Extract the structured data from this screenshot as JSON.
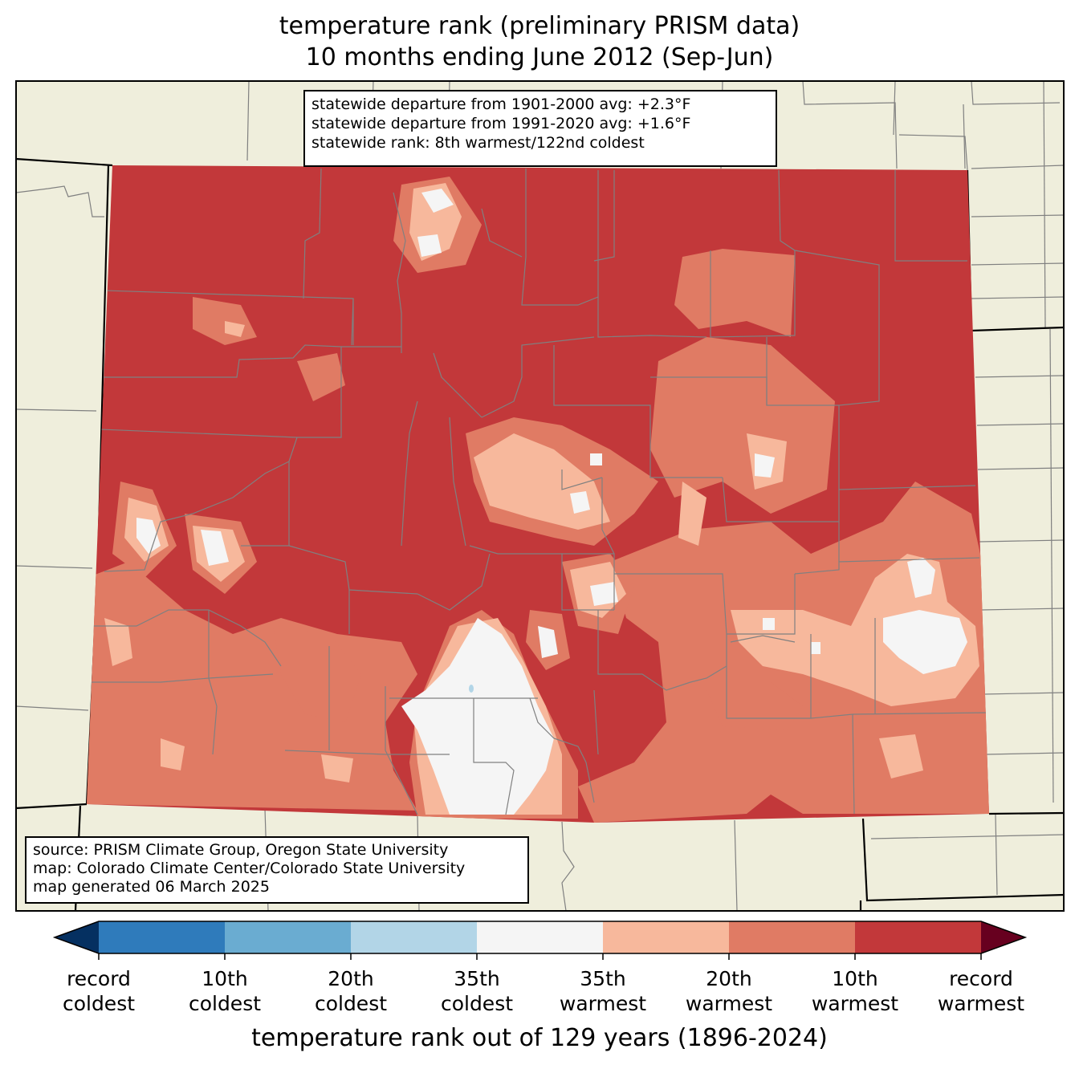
{
  "title_line1": "temperature rank (preliminary PRISM data)",
  "title_line2": "10 months ending June 2012 (Sep-Jun)",
  "stats": {
    "line1": "statewide departure from 1901-2000 avg: +2.3°F",
    "line2": "statewide departure from 1991-2020 avg: +1.6°F",
    "line3": "statewide rank: 8th warmest/122nd coldest"
  },
  "credits": {
    "line1": "source: PRISM Climate Group, Oregon State University",
    "line2": "map: Colorado Climate Center/Colorado State University",
    "line3": "map generated 06 March 2025"
  },
  "colorbar": {
    "title": "temperature rank out of 129 years (1896-2024)",
    "colors": [
      "#053061",
      "#2f7bbb",
      "#6aacd1",
      "#b2d5e7",
      "#f5f5f5",
      "#f7b89c",
      "#e07b64",
      "#c2383a",
      "#67001f"
    ],
    "labels": [
      [
        "record",
        "coldest"
      ],
      [
        "10th",
        "coldest"
      ],
      [
        "20th",
        "coldest"
      ],
      [
        "35th",
        "coldest"
      ],
      [
        "35th",
        "warmest"
      ],
      [
        "20th",
        "warmest"
      ],
      [
        "10th",
        "warmest"
      ],
      [
        "record",
        "warmest"
      ]
    ]
  },
  "map_colors": {
    "land": "#efeedc",
    "record_warm": "#c2383a",
    "warm_10": "#e07b64",
    "warm_20": "#f7b89c",
    "near_normal": "#f5f5f5",
    "cool_35": "#b2d5e7",
    "county_lines": "#808080"
  }
}
